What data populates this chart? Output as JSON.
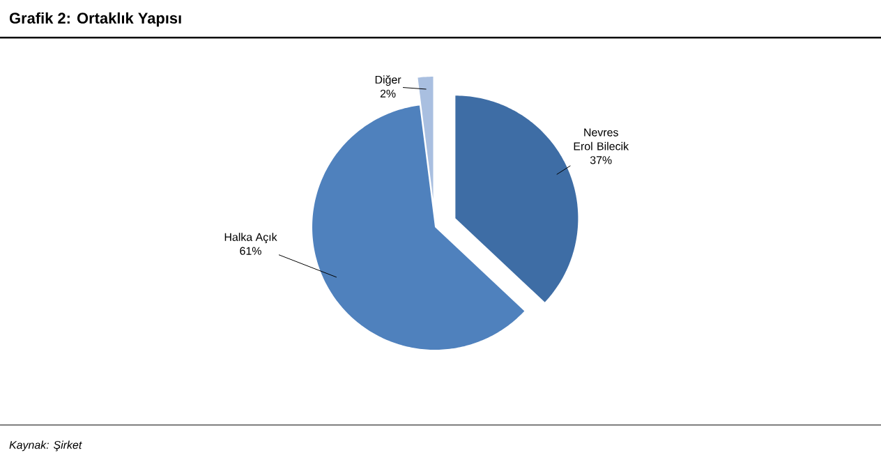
{
  "chart_data": {
    "type": "pie",
    "title": "Grafik 2: Ortaklık Yapısı",
    "categories": [
      "Nevres Erol Bilecik",
      "Halka Açık",
      "Diğer"
    ],
    "values": [
      37,
      61,
      2
    ],
    "colors": [
      "#3e6da5",
      "#4f81bd",
      "#a9bfe0"
    ],
    "value_labels": [
      "37%",
      "61%",
      "2%"
    ],
    "annotations": [
      "Kaynak: Şirket"
    ]
  }
}
